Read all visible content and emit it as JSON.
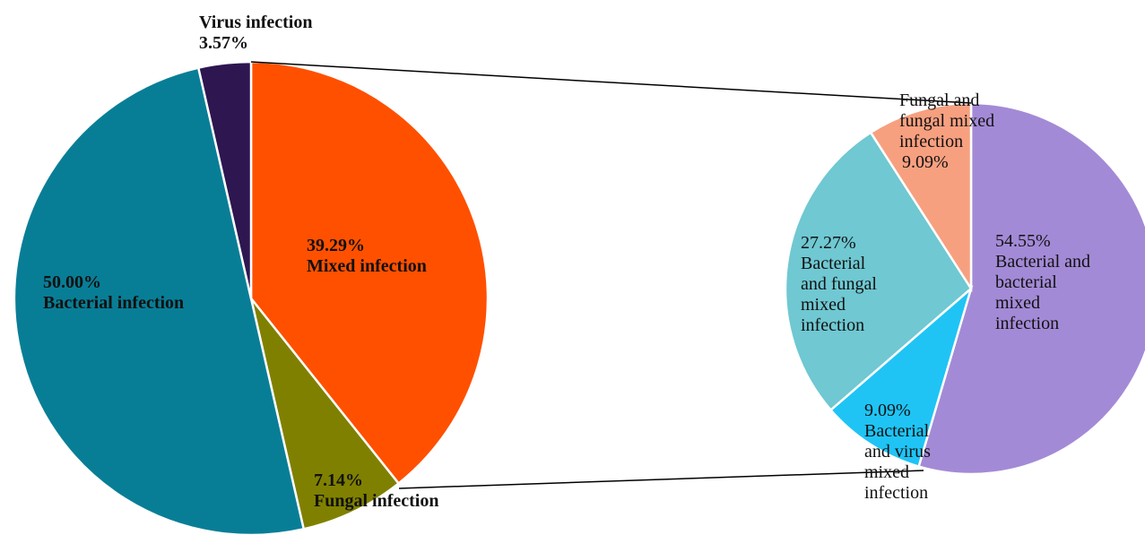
{
  "chart_data": [
    {
      "type": "pie",
      "categories": [
        "Mixed infection",
        "Fungal infection",
        "Bacterial infection",
        "Virus infection"
      ],
      "values": [
        39.29,
        7.14,
        50.0,
        3.57
      ],
      "value_labels": [
        "39.29%",
        "7.14%",
        "50.00%",
        "3.57%"
      ],
      "colors": [
        "#ff5000",
        "#808000",
        "#087e96",
        "#2e1650"
      ]
    },
    {
      "type": "pie",
      "categories": [
        "Bacterial and bacterial mixed infection",
        "Bacterial and virus mixed infection",
        "Bacterial and fungal mixed infection",
        "Fungal and fungal mixed infection"
      ],
      "values": [
        54.55,
        9.09,
        27.27,
        9.09
      ],
      "value_labels": [
        "54.55%",
        "9.09%",
        "27.27%",
        "9.09%"
      ],
      "colors": [
        "#a38ad6",
        "#1fc4f5",
        "#6fc8d2",
        "#f7a080"
      ]
    }
  ]
}
